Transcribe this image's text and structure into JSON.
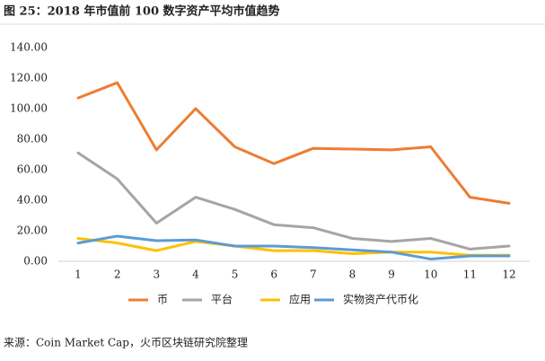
{
  "chart_data": {
    "type": "line",
    "title": "图 25：2018 年市值前 100 数字资产平均市值趋势",
    "source": "来源：Coin Market Cap，火币区块链研究院整理",
    "categories": [
      "1",
      "2",
      "3",
      "4",
      "5",
      "6",
      "7",
      "8",
      "9",
      "10",
      "11",
      "12"
    ],
    "series": [
      {
        "name": "币",
        "color": "#ED7D31",
        "values": [
          107,
          117,
          73,
          100,
          75,
          64,
          74,
          73.5,
          73,
          75,
          42,
          38
        ]
      },
      {
        "name": "平台",
        "color": "#A5A5A5",
        "values": [
          71,
          54,
          25,
          42,
          34,
          24,
          22,
          15,
          13,
          15,
          8,
          10
        ]
      },
      {
        "name": "应用",
        "color": "#FFC000",
        "values": [
          15,
          12,
          7,
          13,
          10,
          7,
          7,
          5,
          6,
          6,
          4,
          4
        ]
      },
      {
        "name": "实物资产代币化",
        "color": "#5B9BD5",
        "values": [
          12,
          16.5,
          13.5,
          14,
          10,
          10,
          9,
          7.5,
          6,
          1.5,
          3.5,
          3.5
        ]
      }
    ],
    "ylim": [
      0,
      140
    ],
    "yticks": [
      {
        "value": 0,
        "label": "0.00"
      },
      {
        "value": 20,
        "label": "20.00"
      },
      {
        "value": 40,
        "label": "40.00"
      },
      {
        "value": 60,
        "label": "60.00"
      },
      {
        "value": 80,
        "label": "80.00"
      },
      {
        "value": 100,
        "label": "100.00"
      },
      {
        "value": 120,
        "label": "120.00"
      },
      {
        "value": 140,
        "label": "140.00"
      }
    ],
    "grid": false,
    "legend": "bottom"
  }
}
